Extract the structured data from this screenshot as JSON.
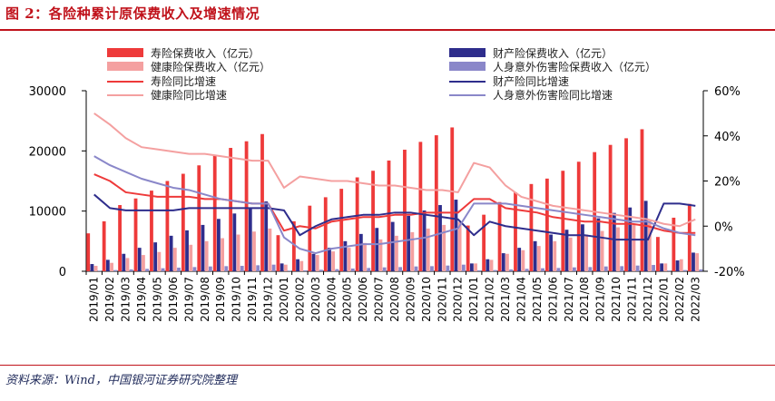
{
  "header": {
    "title": "图 2：各险种累计原保费收入及增速情况"
  },
  "footer": {
    "source": "资料来源：Wind，中国银河证券研究院整理"
  },
  "chart_data": {
    "type": "bar",
    "categories": [
      "2019/01",
      "2019/02",
      "2019/03",
      "2019/04",
      "2019/05",
      "2019/06",
      "2019/07",
      "2019/08",
      "2019/09",
      "2019/10",
      "2019/11",
      "2019/12",
      "2020/01",
      "2020/02",
      "2020/03",
      "2020/04",
      "2020/05",
      "2020/06",
      "2020/07",
      "2020/08",
      "2020/09",
      "2020/10",
      "2020/11",
      "2020/12",
      "2021/01",
      "2021/02",
      "2021/03",
      "2021/04",
      "2021/05",
      "2021/06",
      "2021/07",
      "2021/08",
      "2021/09",
      "2021/10",
      "2021/11",
      "2021/12",
      "2022/01",
      "2022/02",
      "2022/03"
    ],
    "y_left": {
      "min": 0,
      "max": 30000,
      "ticks": [
        0,
        10000,
        20000,
        30000
      ]
    },
    "y_right": {
      "min": -20,
      "max": 60,
      "ticks": [
        -20,
        0,
        20,
        40,
        60
      ],
      "tick_labels": [
        "-20%",
        "0%",
        "20%",
        "40%",
        "60%"
      ]
    },
    "legend": [
      {
        "label": "寿险保费收入（亿元）",
        "kind": "bar",
        "color": "#ee3a3a"
      },
      {
        "label": "财产险保费收入（亿元）",
        "kind": "bar",
        "color": "#2e2d8c"
      },
      {
        "label": "健康险保费收入（亿元）",
        "kind": "bar",
        "color": "#f4a0a0"
      },
      {
        "label": "人身意外伤害险保费收入（亿元）",
        "kind": "bar",
        "color": "#8a87c9"
      },
      {
        "label": "寿险同比增速",
        "kind": "line",
        "color": "#ee3a3a"
      },
      {
        "label": "财产险同比增速",
        "kind": "line",
        "color": "#2e2d8c"
      },
      {
        "label": "健康险同比增速",
        "kind": "line",
        "color": "#f4a0a0"
      },
      {
        "label": "人身意外伤害险同比增速",
        "kind": "line",
        "color": "#8a87c9"
      }
    ],
    "series": [
      {
        "name": "寿险保费收入（亿元）",
        "kind": "bar",
        "axis": "left",
        "color": "#ee3a3a",
        "values": [
          6300,
          8300,
          11000,
          12100,
          13400,
          15000,
          16200,
          17600,
          19300,
          20500,
          21600,
          22800,
          6000,
          8300,
          10900,
          12300,
          13700,
          15600,
          16700,
          18400,
          20200,
          21500,
          22600,
          23900,
          7600,
          9400,
          11500,
          13100,
          14500,
          15400,
          16700,
          18200,
          19800,
          21000,
          22100,
          23600,
          5700,
          8900,
          11200
        ]
      },
      {
        "name": "财产险保费收入（亿元）",
        "kind": "bar",
        "axis": "left",
        "color": "#2e2d8c",
        "values": [
          1200,
          1900,
          2900,
          3900,
          4800,
          5900,
          6800,
          7700,
          8700,
          9600,
          10600,
          11600,
          1300,
          2000,
          2900,
          3900,
          5000,
          6200,
          7200,
          8200,
          9200,
          10100,
          11000,
          11900,
          1300,
          2000,
          3000,
          3900,
          5000,
          6100,
          6900,
          7800,
          8800,
          9700,
          10600,
          11700,
          1300,
          1800,
          3100
        ]
      },
      {
        "name": "健康险保费收入（亿元）",
        "kind": "bar",
        "axis": "left",
        "color": "#f4a0a0",
        "values": [
          900,
          1400,
          2200,
          2700,
          3200,
          3900,
          4400,
          5000,
          5500,
          6100,
          6600,
          7100,
          1100,
          1700,
          2700,
          3300,
          3900,
          4700,
          5300,
          5900,
          6500,
          7100,
          7700,
          8200,
          1300,
          1900,
          2900,
          3500,
          4200,
          5000,
          5600,
          6100,
          6700,
          7300,
          7900,
          8400,
          1300,
          2000,
          3000
        ]
      },
      {
        "name": "人身意外伤害险保费收入（亿元）",
        "kind": "bar",
        "axis": "left",
        "color": "#8a87c9",
        "values": [
          100,
          200,
          300,
          400,
          500,
          600,
          700,
          800,
          850,
          900,
          1000,
          1100,
          100,
          150,
          250,
          350,
          450,
          550,
          650,
          700,
          800,
          850,
          950,
          1100,
          150,
          200,
          300,
          400,
          500,
          550,
          650,
          700,
          800,
          850,
          950,
          1050,
          120,
          200,
          300
        ]
      },
      {
        "name": "寿险同比增速",
        "kind": "line",
        "axis": "right",
        "color": "#ee3a3a",
        "values": [
          23,
          20,
          15,
          14,
          13,
          13,
          13,
          12,
          12,
          11,
          10,
          10,
          -2,
          0,
          -1,
          2,
          3,
          4,
          4,
          5,
          5,
          6,
          6,
          6,
          12,
          12,
          8,
          7,
          6,
          4,
          3,
          2,
          2,
          1,
          1,
          0,
          -2,
          -3,
          -3
        ]
      },
      {
        "name": "财产险同比增速",
        "kind": "line",
        "axis": "right",
        "color": "#2e2d8c",
        "values": [
          14,
          8,
          7,
          7,
          7,
          7,
          8,
          8,
          8,
          8,
          8,
          8,
          7,
          -4,
          0,
          3,
          4,
          5,
          5,
          6,
          6,
          5,
          4,
          3,
          -4,
          2,
          0,
          -1,
          -2,
          -3,
          -4,
          -4,
          -5,
          -6,
          -6,
          -6,
          10,
          10,
          9
        ]
      },
      {
        "name": "健康险同比增速",
        "kind": "line",
        "axis": "right",
        "color": "#f4a0a0",
        "values": [
          50,
          45,
          39,
          35,
          34,
          33,
          32,
          32,
          31,
          30,
          29,
          29,
          17,
          22,
          21,
          20,
          20,
          19,
          18,
          18,
          17,
          16,
          16,
          15,
          28,
          26,
          18,
          13,
          11,
          9,
          8,
          7,
          6,
          5,
          4,
          3,
          1,
          0,
          3
        ]
      },
      {
        "name": "人身意外伤害险同比增速",
        "kind": "line",
        "axis": "right",
        "color": "#8a87c9",
        "values": [
          31,
          27,
          24,
          21,
          19,
          17,
          16,
          14,
          12,
          11,
          10,
          10,
          -5,
          -10,
          -12,
          -10,
          -9,
          -8,
          -8,
          -7,
          -6,
          -5,
          -3,
          -1,
          10,
          10,
          10,
          9,
          8,
          7,
          6,
          5,
          4,
          3,
          2,
          2,
          -1,
          -3,
          -4
        ]
      }
    ]
  }
}
